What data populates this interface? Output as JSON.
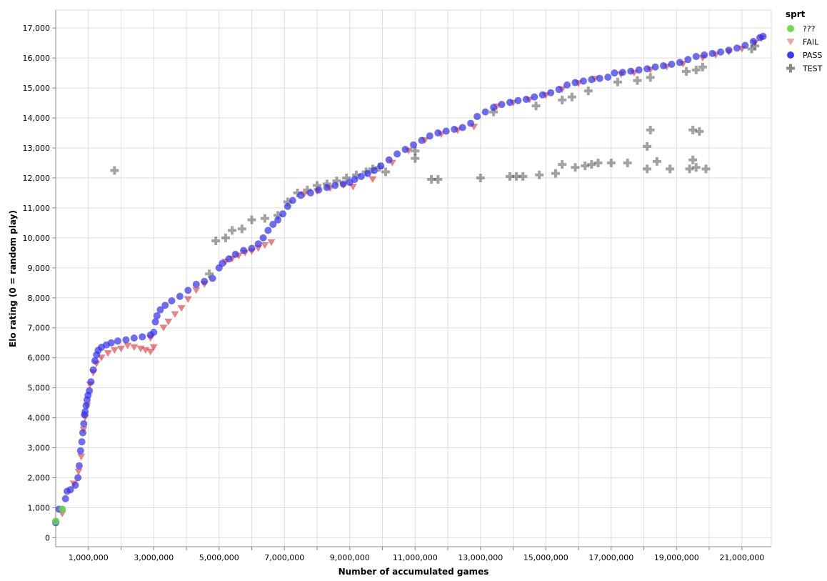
{
  "chart_data": {
    "type": "scatter",
    "xlabel": "Number of accumulated games",
    "ylabel": "Elo rating (0 = random play)",
    "xlim": [
      0,
      21900000
    ],
    "ylim": [
      -300,
      17600
    ],
    "x_ticks": [
      1000000,
      3000000,
      5000000,
      7000000,
      9000000,
      11000000,
      13000000,
      15000000,
      17000000,
      19000000,
      21000000
    ],
    "x_tick_labels": [
      "1,000,000",
      "3,000,000",
      "5,000,000",
      "7,000,000",
      "9,000,000",
      "11,000,000",
      "13,000,000",
      "15,000,000",
      "17,000,000",
      "19,000,000",
      "21,000,000"
    ],
    "x_minor_ticks": [
      2000000,
      4000000,
      6000000,
      8000000,
      10000000,
      12000000,
      14000000,
      16000000,
      18000000,
      20000000
    ],
    "y_ticks": [
      0,
      1000,
      2000,
      3000,
      4000,
      5000,
      6000,
      7000,
      8000,
      9000,
      10000,
      11000,
      12000,
      13000,
      14000,
      15000,
      16000,
      17000
    ],
    "y_tick_labels": [
      "0",
      "1,000",
      "2,000",
      "3,000",
      "4,000",
      "5,000",
      "6,000",
      "7,000",
      "8,000",
      "9,000",
      "10,000",
      "11,000",
      "12,000",
      "13,000",
      "14,000",
      "15,000",
      "16,000",
      "17,000"
    ],
    "grid": true,
    "legend": {
      "title": "sprt",
      "placement": "top-right",
      "entries": [
        {
          "label": "???",
          "shape": "circle",
          "color": "#6fdc4f"
        },
        {
          "label": "FAIL",
          "shape": "triangle-down",
          "color": "#e8a7a7"
        },
        {
          "label": "PASS",
          "shape": "circle",
          "color": "#3b3bf5"
        },
        {
          "label": "TEST",
          "shape": "cross",
          "color": "#8a8a8a"
        }
      ]
    },
    "series": [
      {
        "name": "PASS",
        "shape": "circle",
        "color": "#2f2ff0",
        "points": [
          [
            0,
            500
          ],
          [
            100000,
            950
          ],
          [
            300000,
            1300
          ],
          [
            350000,
            1550
          ],
          [
            450000,
            1600
          ],
          [
            600000,
            1750
          ],
          [
            680000,
            2000
          ],
          [
            720000,
            2400
          ],
          [
            760000,
            2900
          ],
          [
            800000,
            3200
          ],
          [
            830000,
            3500
          ],
          [
            860000,
            3800
          ],
          [
            880000,
            4100
          ],
          [
            900000,
            4200
          ],
          [
            930000,
            4400
          ],
          [
            960000,
            4600
          ],
          [
            990000,
            4750
          ],
          [
            1030000,
            4900
          ],
          [
            1080000,
            5200
          ],
          [
            1150000,
            5600
          ],
          [
            1200000,
            5900
          ],
          [
            1250000,
            6100
          ],
          [
            1300000,
            6250
          ],
          [
            1400000,
            6350
          ],
          [
            1550000,
            6430
          ],
          [
            1700000,
            6500
          ],
          [
            1900000,
            6560
          ],
          [
            2150000,
            6600
          ],
          [
            2400000,
            6660
          ],
          [
            2650000,
            6700
          ],
          [
            2900000,
            6760
          ],
          [
            3000000,
            6850
          ],
          [
            3050000,
            7200
          ],
          [
            3100000,
            7400
          ],
          [
            3200000,
            7600
          ],
          [
            3350000,
            7750
          ],
          [
            3550000,
            7900
          ],
          [
            3800000,
            8050
          ],
          [
            4050000,
            8250
          ],
          [
            4300000,
            8450
          ],
          [
            4550000,
            8550
          ],
          [
            4800000,
            8650
          ],
          [
            5000000,
            9000
          ],
          [
            5100000,
            9150
          ],
          [
            5300000,
            9300
          ],
          [
            5500000,
            9450
          ],
          [
            5750000,
            9580
          ],
          [
            6000000,
            9650
          ],
          [
            6200000,
            9800
          ],
          [
            6350000,
            10000
          ],
          [
            6500000,
            10250
          ],
          [
            6650000,
            10450
          ],
          [
            6800000,
            10600
          ],
          [
            6950000,
            10800
          ],
          [
            7100000,
            11050
          ],
          [
            7250000,
            11250
          ],
          [
            7500000,
            11420
          ],
          [
            7800000,
            11500
          ],
          [
            8050000,
            11600
          ],
          [
            8300000,
            11680
          ],
          [
            8550000,
            11750
          ],
          [
            8800000,
            11800
          ],
          [
            9000000,
            11850
          ],
          [
            9150000,
            11950
          ],
          [
            9350000,
            12050
          ],
          [
            9550000,
            12150
          ],
          [
            9750000,
            12250
          ],
          [
            9950000,
            12400
          ],
          [
            10200000,
            12600
          ],
          [
            10450000,
            12800
          ],
          [
            10700000,
            12950
          ],
          [
            10950000,
            13100
          ],
          [
            11200000,
            13250
          ],
          [
            11450000,
            13400
          ],
          [
            11700000,
            13500
          ],
          [
            11950000,
            13560
          ],
          [
            12200000,
            13620
          ],
          [
            12450000,
            13680
          ],
          [
            12700000,
            13820
          ],
          [
            12900000,
            14050
          ],
          [
            13150000,
            14200
          ],
          [
            13400000,
            14350
          ],
          [
            13650000,
            14450
          ],
          [
            13900000,
            14520
          ],
          [
            14150000,
            14580
          ],
          [
            14400000,
            14620
          ],
          [
            14650000,
            14700
          ],
          [
            14900000,
            14770
          ],
          [
            15150000,
            14840
          ],
          [
            15400000,
            14950
          ],
          [
            15650000,
            15100
          ],
          [
            15900000,
            15180
          ],
          [
            16150000,
            15230
          ],
          [
            16400000,
            15280
          ],
          [
            16650000,
            15320
          ],
          [
            16900000,
            15360
          ],
          [
            17100000,
            15500
          ],
          [
            17350000,
            15520
          ],
          [
            17600000,
            15560
          ],
          [
            17850000,
            15600
          ],
          [
            18100000,
            15640
          ],
          [
            18350000,
            15700
          ],
          [
            18600000,
            15740
          ],
          [
            18850000,
            15790
          ],
          [
            19100000,
            15850
          ],
          [
            19350000,
            15950
          ],
          [
            19600000,
            16050
          ],
          [
            19850000,
            16100
          ],
          [
            20100000,
            16150
          ],
          [
            20350000,
            16200
          ],
          [
            20600000,
            16260
          ],
          [
            20850000,
            16330
          ],
          [
            21100000,
            16420
          ],
          [
            21350000,
            16550
          ],
          [
            21550000,
            16680
          ],
          [
            21650000,
            16720
          ]
        ]
      },
      {
        "name": "FAIL",
        "shape": "triangle-down",
        "color": "#d21e1e",
        "points": [
          [
            200000,
            800
          ],
          [
            550000,
            1800
          ],
          [
            700000,
            2200
          ],
          [
            780000,
            2700
          ],
          [
            850000,
            3600
          ],
          [
            900000,
            4000
          ],
          [
            960000,
            4400
          ],
          [
            1050000,
            5100
          ],
          [
            1150000,
            5500
          ],
          [
            1250000,
            5800
          ],
          [
            1400000,
            6000
          ],
          [
            1600000,
            6150
          ],
          [
            1800000,
            6250
          ],
          [
            2000000,
            6300
          ],
          [
            2200000,
            6400
          ],
          [
            2400000,
            6350
          ],
          [
            2600000,
            6300
          ],
          [
            2750000,
            6250
          ],
          [
            2900000,
            6200
          ],
          [
            3000000,
            6350
          ],
          [
            2900000,
            6650
          ],
          [
            3300000,
            7000
          ],
          [
            3450000,
            7200
          ],
          [
            3650000,
            7450
          ],
          [
            3850000,
            7650
          ],
          [
            4050000,
            7950
          ],
          [
            4300000,
            8250
          ],
          [
            4550000,
            8450
          ],
          [
            5200000,
            9200
          ],
          [
            5400000,
            9300
          ],
          [
            5600000,
            9400
          ],
          [
            5800000,
            9500
          ],
          [
            6000000,
            9550
          ],
          [
            6200000,
            9650
          ],
          [
            6400000,
            9750
          ],
          [
            6600000,
            9850
          ],
          [
            7600000,
            11450
          ],
          [
            8000000,
            11550
          ],
          [
            8400000,
            11650
          ],
          [
            8800000,
            11750
          ],
          [
            9100000,
            11700
          ],
          [
            9700000,
            11950
          ],
          [
            10300000,
            12500
          ],
          [
            10800000,
            12900
          ],
          [
            11300000,
            13250
          ],
          [
            11800000,
            13450
          ],
          [
            12300000,
            13580
          ],
          [
            12800000,
            13700
          ],
          [
            13500000,
            14380
          ],
          [
            14000000,
            14500
          ],
          [
            14500000,
            14600
          ],
          [
            15000000,
            14750
          ],
          [
            15500000,
            14950
          ],
          [
            16000000,
            15150
          ],
          [
            16500000,
            15300
          ],
          [
            17300000,
            15450
          ],
          [
            17700000,
            15500
          ],
          [
            18200000,
            15600
          ],
          [
            18700000,
            15700
          ],
          [
            19200000,
            15800
          ],
          [
            19800000,
            16000
          ],
          [
            20200000,
            16100
          ],
          [
            20600000,
            16200
          ],
          [
            21000000,
            16300
          ],
          [
            21400000,
            16500
          ],
          [
            21600000,
            16650
          ]
        ]
      },
      {
        "name": "TEST",
        "shape": "cross",
        "color": "#555555",
        "points": [
          [
            1800000,
            12250
          ],
          [
            4700000,
            8800
          ],
          [
            4900000,
            9900
          ],
          [
            5200000,
            10000
          ],
          [
            5400000,
            10250
          ],
          [
            5700000,
            10300
          ],
          [
            6000000,
            10600
          ],
          [
            6400000,
            10650
          ],
          [
            6800000,
            10750
          ],
          [
            7100000,
            11200
          ],
          [
            7400000,
            11500
          ],
          [
            7700000,
            11600
          ],
          [
            8000000,
            11750
          ],
          [
            8300000,
            11800
          ],
          [
            8600000,
            11900
          ],
          [
            8900000,
            12000
          ],
          [
            9200000,
            12100
          ],
          [
            9500000,
            12200
          ],
          [
            9700000,
            12300
          ],
          [
            9900000,
            12350
          ],
          [
            10100000,
            12200
          ],
          [
            11000000,
            12650
          ],
          [
            11000000,
            12900
          ],
          [
            11500000,
            11950
          ],
          [
            11700000,
            11950
          ],
          [
            13000000,
            12000
          ],
          [
            13900000,
            12050
          ],
          [
            14100000,
            12050
          ],
          [
            14300000,
            12050
          ],
          [
            14800000,
            12100
          ],
          [
            15300000,
            12150
          ],
          [
            15500000,
            12450
          ],
          [
            15900000,
            12350
          ],
          [
            16200000,
            12400
          ],
          [
            16400000,
            12450
          ],
          [
            16600000,
            12500
          ],
          [
            17000000,
            12500
          ],
          [
            17500000,
            12500
          ],
          [
            18100000,
            12300
          ],
          [
            18400000,
            12550
          ],
          [
            18800000,
            12300
          ],
          [
            19400000,
            12300
          ],
          [
            19500000,
            12600
          ],
          [
            19600000,
            12350
          ],
          [
            19900000,
            12300
          ],
          [
            18200000,
            13600
          ],
          [
            19500000,
            13600
          ],
          [
            19700000,
            13550
          ],
          [
            18100000,
            13050
          ],
          [
            13400000,
            14200
          ],
          [
            14700000,
            14400
          ],
          [
            15500000,
            14600
          ],
          [
            15800000,
            14700
          ],
          [
            16300000,
            14900
          ],
          [
            17200000,
            15200
          ],
          [
            17800000,
            15250
          ],
          [
            18200000,
            15350
          ],
          [
            19300000,
            15550
          ],
          [
            19600000,
            15600
          ],
          [
            19800000,
            15700
          ],
          [
            21400000,
            16400
          ],
          [
            21300000,
            16300
          ]
        ]
      },
      {
        "name": "???",
        "shape": "circle",
        "color": "#5fd24a",
        "points": [
          [
            200000,
            950
          ],
          [
            0,
            550
          ]
        ]
      }
    ]
  }
}
